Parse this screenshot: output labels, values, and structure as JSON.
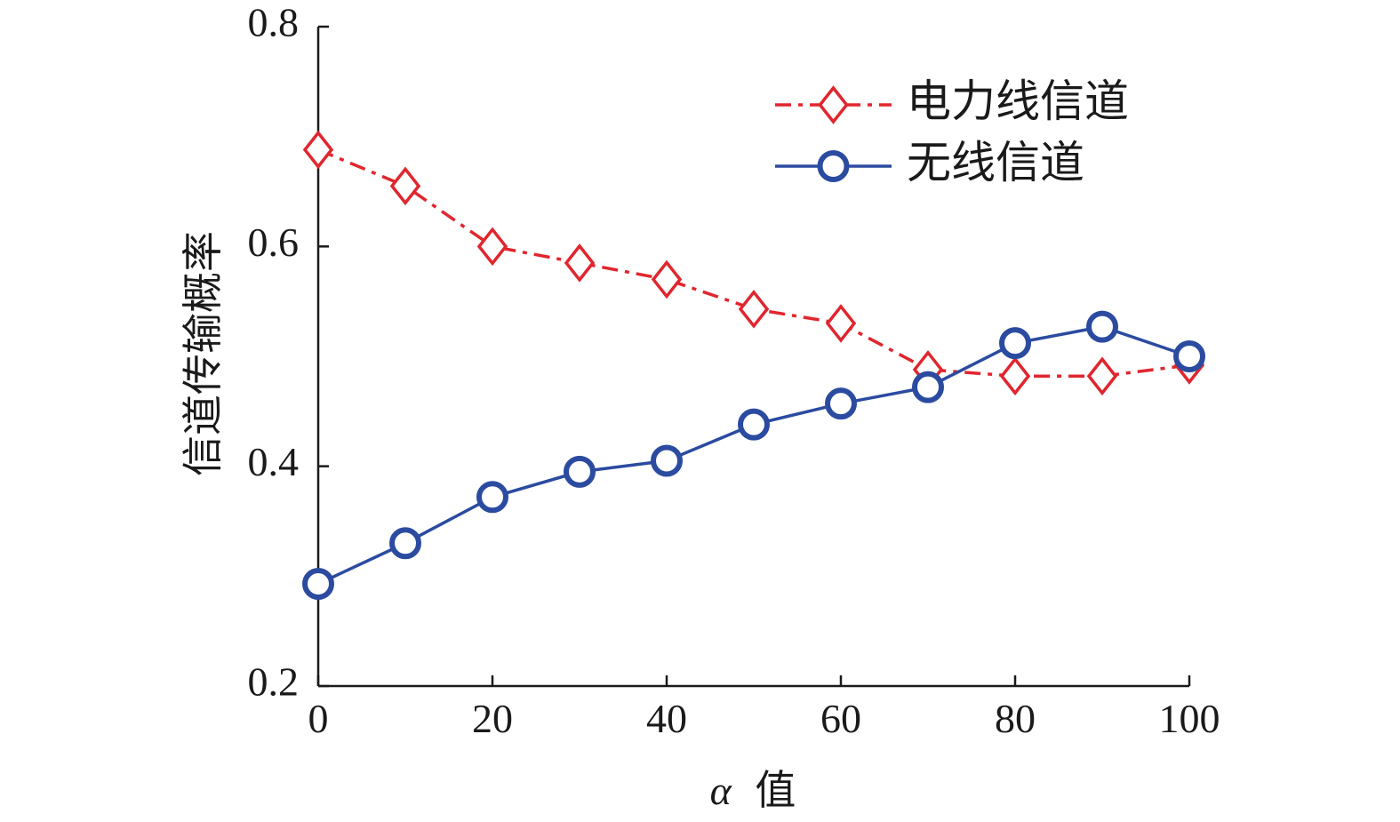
{
  "chart_data": {
    "type": "line",
    "title": "",
    "xlabel_symbol": "α",
    "xlabel_text": "值",
    "ylabel": "信道传输概率",
    "xlim": [
      0,
      100
    ],
    "ylim": [
      0.2,
      0.8
    ],
    "x_ticks": [
      0,
      20,
      40,
      60,
      80,
      100
    ],
    "y_ticks": [
      0.2,
      0.4,
      0.6,
      0.8
    ],
    "y_tick_labels": [
      "0.2",
      "0.4",
      "0.6",
      "0.8"
    ],
    "x": [
      0,
      10,
      20,
      30,
      40,
      50,
      60,
      70,
      80,
      90,
      100
    ],
    "grid": false,
    "legend_position": "top-right",
    "series": [
      {
        "name": "电力线信道",
        "color": "#e0262e",
        "line_style": "dash-dot",
        "marker": "diamond-icon",
        "values": [
          0.688,
          0.655,
          0.6,
          0.585,
          0.57,
          0.543,
          0.53,
          0.488,
          0.482,
          0.482,
          0.492
        ]
      },
      {
        "name": "无线信道",
        "color": "#2b4ba0",
        "line_style": "solid",
        "marker": "circle-icon",
        "values": [
          0.293,
          0.33,
          0.372,
          0.395,
          0.405,
          0.438,
          0.457,
          0.472,
          0.512,
          0.527,
          0.5
        ]
      }
    ]
  }
}
